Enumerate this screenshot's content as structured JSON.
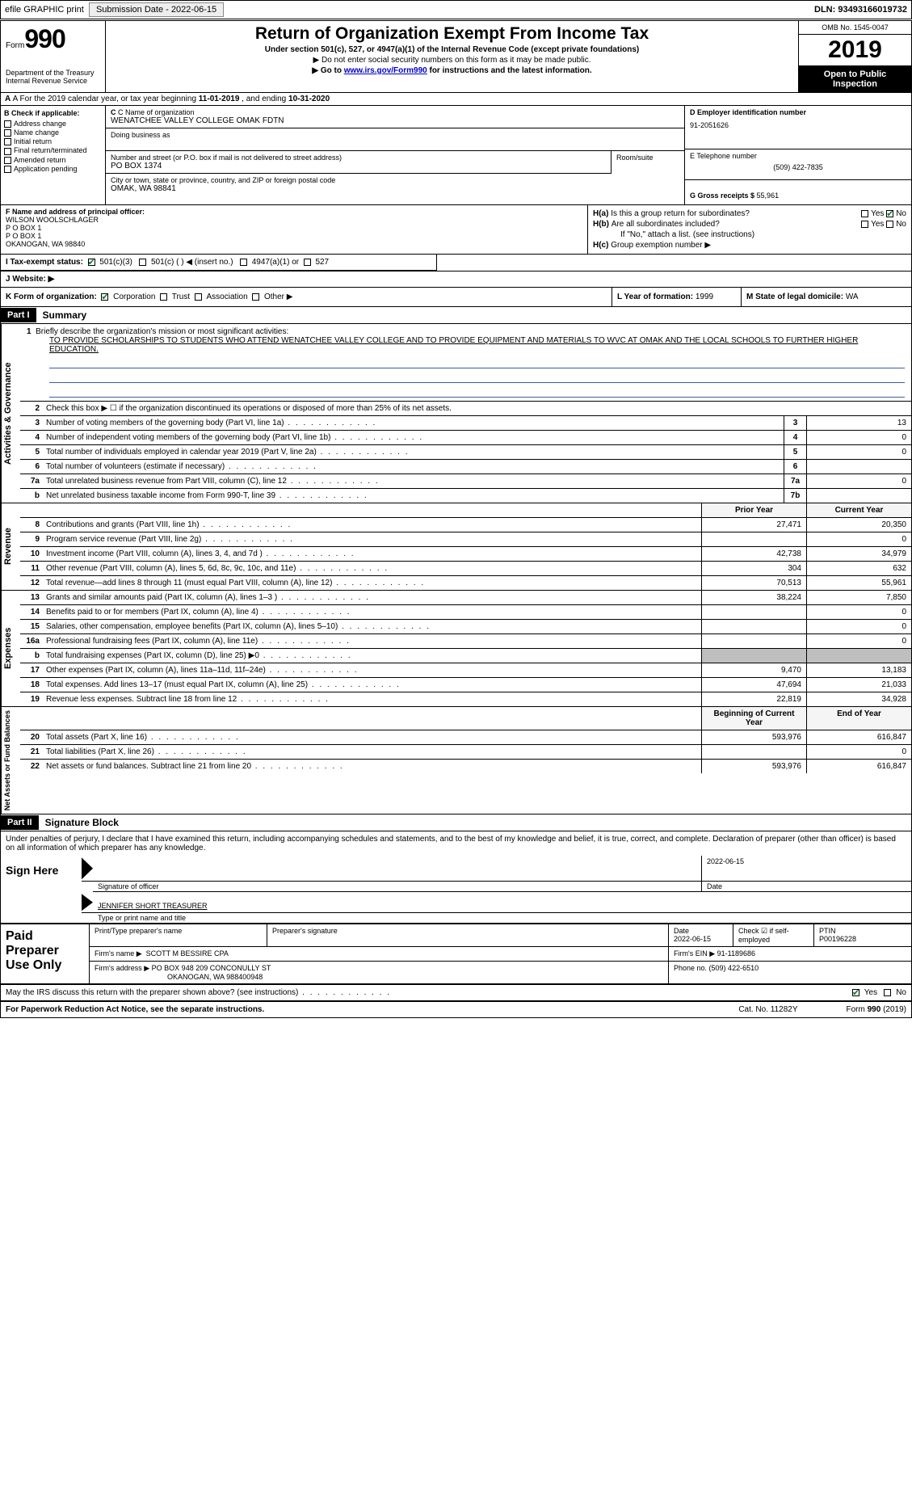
{
  "topbar": {
    "efile": "efile GRAPHIC print",
    "sub_label": "Submission Date - ",
    "sub_date": "2022-06-15",
    "dln_label": "DLN: ",
    "dln": "93493166019732"
  },
  "header": {
    "form_word": "Form",
    "form_num": "990",
    "dept1": "Department of the Treasury",
    "dept2": "Internal Revenue Service",
    "title": "Return of Organization Exempt From Income Tax",
    "sub": "Under section 501(c), 527, or 4947(a)(1) of the Internal Revenue Code (except private foundations)",
    "note1": "▶ Do not enter social security numbers on this form as it may be made public.",
    "note2_pre": "▶ Go to ",
    "note2_link": "www.irs.gov/Form990",
    "note2_post": " for instructions and the latest information.",
    "omb": "OMB No. 1545-0047",
    "year": "2019",
    "open1": "Open to Public",
    "open2": "Inspection"
  },
  "row_a": {
    "text_pre": "A For the 2019 calendar year, or tax year beginning ",
    "begin": "11-01-2019",
    "mid": "   , and ending ",
    "end": "10-31-2020"
  },
  "section_b": {
    "hdr": "B Check if applicable:",
    "opts": [
      "Address change",
      "Name change",
      "Initial return",
      "Final return/terminated",
      "Amended return",
      "Application pending"
    ]
  },
  "section_c": {
    "name_lbl": "C Name of organization",
    "name": "WENATCHEE VALLEY COLLEGE OMAK FDTN",
    "dba_lbl": "Doing business as",
    "dba": "",
    "street_lbl": "Number and street (or P.O. box if mail is not delivered to street address)",
    "street": "PO BOX 1374",
    "room_lbl": "Room/suite",
    "room": "",
    "city_lbl": "City or town, state or province, country, and ZIP or foreign postal code",
    "city": "OMAK, WA  98841"
  },
  "section_d": {
    "lbl": "D Employer identification number",
    "val": "91-2051626"
  },
  "section_e": {
    "lbl": "E Telephone number",
    "val": "(509) 422-7835"
  },
  "section_g": {
    "lbl": "G Gross receipts $ ",
    "val": "55,961"
  },
  "section_f": {
    "lbl": "F  Name and address of principal officer:",
    "name": "WILSON WOOLSCHLAGER",
    "l1": "P O BOX 1",
    "l2": "P O BOX 1",
    "l3": "OKANOGAN, WA   98840"
  },
  "section_h": {
    "a_lbl": "H(a)",
    "a_q": "Is this a group return for subordinates?",
    "b_lbl": "H(b)",
    "b_q": "Are all subordinates included?",
    "b_note": "If \"No,\" attach a list. (see instructions)",
    "c_lbl": "H(c)",
    "c_q": "Group exemption number ▶",
    "yes": "Yes",
    "no": "No"
  },
  "row_i": {
    "lbl": "I  Tax-exempt status:",
    "o1": "501(c)(3)",
    "o2": "501(c) (   ) ◀ (insert no.)",
    "o3": "4947(a)(1) or",
    "o4": "527"
  },
  "row_j": {
    "lbl": "J  Website: ▶"
  },
  "row_k": {
    "lbl": "K Form of organization:",
    "o1": "Corporation",
    "o2": "Trust",
    "o3": "Association",
    "o4": "Other ▶",
    "l_lbl": "L Year of formation: ",
    "l_val": "1999",
    "m_lbl": "M State of legal domicile: ",
    "m_val": "WA"
  },
  "part1": {
    "hdr": "Part I",
    "title": "Summary",
    "mission_lbl": "1   Briefly describe the organization's mission or most significant activities:",
    "mission": "TO PROVIDE SCHOLARSHIPS TO STUDENTS WHO ATTEND WENATCHEE VALLEY COLLEGE AND TO PROVIDE EQUIPMENT AND MATERIALS TO WVC AT OMAK AND THE LOCAL SCHOOLS TO FURTHER HIGHER EDUCATION.",
    "line2": "Check this box ▶ ☐ if the organization discontinued its operations or disposed of more than 25% of its net assets.",
    "gov": [
      {
        "n": "3",
        "d": "Number of voting members of the governing body (Part VI, line 1a)",
        "b": "3",
        "v": "13"
      },
      {
        "n": "4",
        "d": "Number of independent voting members of the governing body (Part VI, line 1b)",
        "b": "4",
        "v": "0"
      },
      {
        "n": "5",
        "d": "Total number of individuals employed in calendar year 2019 (Part V, line 2a)",
        "b": "5",
        "v": "0"
      },
      {
        "n": "6",
        "d": "Total number of volunteers (estimate if necessary)",
        "b": "6",
        "v": ""
      },
      {
        "n": "7a",
        "d": "Total unrelated business revenue from Part VIII, column (C), line 12",
        "b": "7a",
        "v": "0"
      },
      {
        "n": "b",
        "d": "Net unrelated business taxable income from Form 990-T, line 39",
        "b": "7b",
        "v": ""
      }
    ],
    "col_prior": "Prior Year",
    "col_curr": "Current Year",
    "rev": [
      {
        "n": "8",
        "d": "Contributions and grants (Part VIII, line 1h)",
        "p": "27,471",
        "c": "20,350"
      },
      {
        "n": "9",
        "d": "Program service revenue (Part VIII, line 2g)",
        "p": "",
        "c": "0"
      },
      {
        "n": "10",
        "d": "Investment income (Part VIII, column (A), lines 3, 4, and 7d )",
        "p": "42,738",
        "c": "34,979"
      },
      {
        "n": "11",
        "d": "Other revenue (Part VIII, column (A), lines 5, 6d, 8c, 9c, 10c, and 11e)",
        "p": "304",
        "c": "632"
      },
      {
        "n": "12",
        "d": "Total revenue—add lines 8 through 11 (must equal Part VIII, column (A), line 12)",
        "p": "70,513",
        "c": "55,961"
      }
    ],
    "exp": [
      {
        "n": "13",
        "d": "Grants and similar amounts paid (Part IX, column (A), lines 1–3 )",
        "p": "38,224",
        "c": "7,850"
      },
      {
        "n": "14",
        "d": "Benefits paid to or for members (Part IX, column (A), line 4)",
        "p": "",
        "c": "0"
      },
      {
        "n": "15",
        "d": "Salaries, other compensation, employee benefits (Part IX, column (A), lines 5–10)",
        "p": "",
        "c": "0"
      },
      {
        "n": "16a",
        "d": "Professional fundraising fees (Part IX, column (A), line 11e)",
        "p": "",
        "c": "0"
      },
      {
        "n": "b",
        "d": "Total fundraising expenses (Part IX, column (D), line 25) ▶0",
        "p": "—shade—",
        "c": "—shade—"
      },
      {
        "n": "17",
        "d": "Other expenses (Part IX, column (A), lines 11a–11d, 11f–24e)",
        "p": "9,470",
        "c": "13,183"
      },
      {
        "n": "18",
        "d": "Total expenses. Add lines 13–17 (must equal Part IX, column (A), line 25)",
        "p": "47,694",
        "c": "21,033"
      },
      {
        "n": "19",
        "d": "Revenue less expenses. Subtract line 18 from line 12",
        "p": "22,819",
        "c": "34,928"
      }
    ],
    "col_beg": "Beginning of Current Year",
    "col_end": "End of Year",
    "net": [
      {
        "n": "20",
        "d": "Total assets (Part X, line 16)",
        "p": "593,976",
        "c": "616,847"
      },
      {
        "n": "21",
        "d": "Total liabilities (Part X, line 26)",
        "p": "",
        "c": "0"
      },
      {
        "n": "22",
        "d": "Net assets or fund balances. Subtract line 21 from line 20",
        "p": "593,976",
        "c": "616,847"
      }
    ],
    "vtab_gov": "Activities & Governance",
    "vtab_rev": "Revenue",
    "vtab_exp": "Expenses",
    "vtab_net": "Net Assets or Fund Balances"
  },
  "part2": {
    "hdr": "Part II",
    "title": "Signature Block",
    "decl": "Under penalties of perjury, I declare that I have examined this return, including accompanying schedules and statements, and to the best of my knowledge and belief, it is true, correct, and complete. Declaration of preparer (other than officer) is based on all information of which preparer has any knowledge.",
    "sign_here": "Sign Here",
    "sig_of_officer": "Signature of officer",
    "sig_date": "2022-06-15",
    "date_lbl": "Date",
    "officer_name": "JENNIFER SHORT TREASURER",
    "type_name_lbl": "Type or print name and title"
  },
  "prep": {
    "title": "Paid Preparer Use Only",
    "r1": {
      "c1": "Print/Type preparer's name",
      "c2": "Preparer's signature",
      "c3_lbl": "Date",
      "c3": "2022-06-15",
      "c4_lbl": "Check ☑ if self-employed",
      "c5_lbl": "PTIN",
      "c5": "P00196228"
    },
    "r2": {
      "lbl": "Firm's name    ▶",
      "val": "SCOTT M BESSIRE CPA",
      "ein_lbl": "Firm's EIN ▶",
      "ein": "91-1189686"
    },
    "r3": {
      "lbl": "Firm's address ▶",
      "val": "PO BOX 948 209 CONCONULLY ST",
      "city": "OKANOGAN, WA  988400948",
      "ph_lbl": "Phone no. ",
      "ph": "(509) 422-6510"
    }
  },
  "discuss": {
    "q": "May the IRS discuss this return with the preparer shown above? (see instructions)",
    "yes": "Yes",
    "no": "No"
  },
  "footer": {
    "l": "For Paperwork Reduction Act Notice, see the separate instructions.",
    "m": "Cat. No. 11282Y",
    "r": "Form 990 (2019)"
  }
}
